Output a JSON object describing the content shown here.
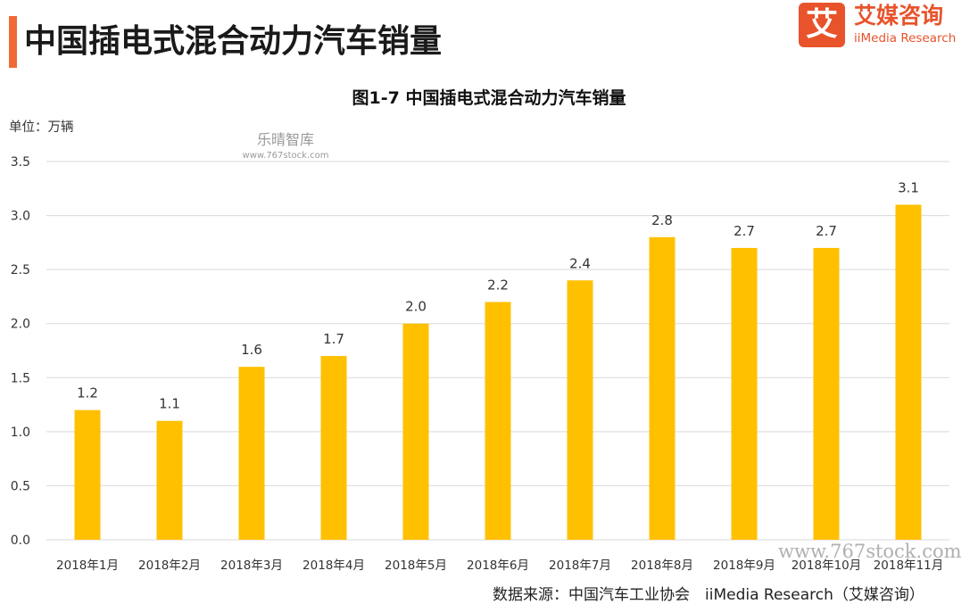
{
  "header": {
    "title": "中国插电式混合动力汽车销量",
    "accent_color": "#f06a35"
  },
  "logo": {
    "mark": "艾",
    "name_cn": "艾媒咨询",
    "name_en": "iiMedia Research",
    "color": "#e8532b"
  },
  "watermarks": {
    "center_cn": "乐晴智库",
    "center_url": "www.767stock.com",
    "corner_url": "www.767stock.com"
  },
  "footer": {
    "source": "数据来源：中国汽车工业协会　iiMedia Research（艾媒咨询）"
  },
  "chart_data": {
    "type": "bar",
    "title": "图1-7 中国插电式混合动力汽车销量",
    "unit_label": "单位：万辆",
    "categories": [
      "2018年1月",
      "2018年2月",
      "2018年3月",
      "2018年4月",
      "2018年5月",
      "2018年6月",
      "2018年7月",
      "2018年8月",
      "2018年9月",
      "2018年10月",
      "2018年11月"
    ],
    "values": [
      1.2,
      1.1,
      1.6,
      1.7,
      2.0,
      2.2,
      2.4,
      2.8,
      2.7,
      2.7,
      3.1
    ],
    "value_labels": [
      "1.2",
      "1.1",
      "1.6",
      "1.7",
      "2.0",
      "2.2",
      "2.4",
      "2.8",
      "2.7",
      "2.7",
      "3.1"
    ],
    "yticks": [
      "0.0",
      "0.5",
      "1.0",
      "1.5",
      "2.0",
      "2.5",
      "3.0",
      "3.5"
    ],
    "ylim": [
      0,
      3.5
    ],
    "ystep": 0.5,
    "grid": true,
    "bar_color": "#ffc000",
    "grid_color": "#d9d9d9"
  }
}
